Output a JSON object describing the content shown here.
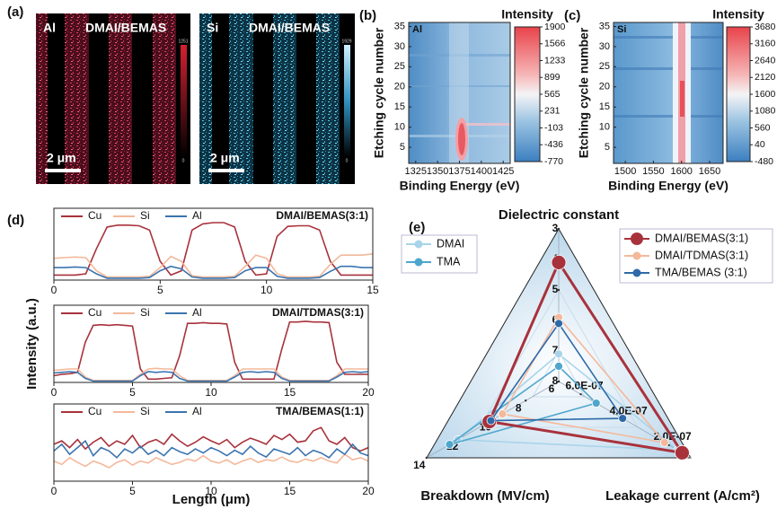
{
  "panel_labels": [
    "(a)",
    "(b)",
    "(c)",
    "(d)",
    "(e)"
  ],
  "panel_a": {
    "maps": [
      {
        "element": "Al",
        "sample": "DMAI/BEMAS",
        "scale": "2 μm",
        "cbar_max": 1251,
        "cbar_min": 0
      },
      {
        "element": "Si",
        "sample": "DMAI/BEMAS",
        "scale": "2 μm",
        "cbar_max": 1929,
        "cbar_min": 0
      }
    ]
  },
  "chart_data": [
    {
      "type": "heatmap",
      "annotation": "Al",
      "colorbar_label": "Intensity",
      "xlabel": "Binding Energy (eV)",
      "ylabel": "Etching cycle number",
      "xlim": [
        1317,
        1433
      ],
      "xticks": [
        1325,
        1350,
        1375,
        1400,
        1425
      ],
      "ylim": [
        1,
        36
      ],
      "yticks": [
        5,
        10,
        15,
        20,
        25,
        30,
        35
      ],
      "clim": [
        -770,
        1900
      ],
      "cticks": [
        1900,
        1566,
        1233,
        899,
        565,
        231,
        -103,
        -436,
        -770
      ]
    },
    {
      "type": "heatmap",
      "annotation": "Si",
      "colorbar_label": "Intensity",
      "xlabel": "Binding Energy (eV)",
      "ylabel": "Etching cycle number",
      "xlim": [
        1479,
        1674
      ],
      "xticks": [
        1500,
        1550,
        1600,
        1650
      ],
      "ylim": [
        1,
        36
      ],
      "yticks": [
        5,
        10,
        15,
        20,
        25,
        30,
        35
      ],
      "clim": [
        -480,
        3680
      ],
      "cticks": [
        3680,
        3160,
        2640,
        2120,
        1600,
        1080,
        560,
        40,
        -480
      ]
    },
    {
      "type": "line",
      "title": "DMAI/BEMAS(3:1)",
      "xlim": [
        0,
        15
      ],
      "xticks": [
        0,
        5,
        10,
        15
      ],
      "ylim": [
        0,
        1.15
      ],
      "x": [
        0,
        0.5,
        1,
        1.5,
        2,
        2.5,
        3,
        3.5,
        4,
        4.5,
        5,
        5.5,
        6,
        6.5,
        7,
        7.5,
        8,
        8.5,
        9,
        9.5,
        10,
        10.5,
        11,
        11.5,
        12,
        12.5,
        13,
        13.5,
        14,
        14.5,
        15
      ],
      "series": [
        {
          "name": "Cu",
          "color": "#a8323c",
          "values": [
            0.08,
            0.08,
            0.08,
            0.1,
            0.5,
            0.85,
            0.88,
            0.88,
            0.87,
            0.8,
            0.3,
            0.08,
            0.15,
            0.8,
            0.9,
            0.92,
            0.92,
            0.85,
            0.3,
            0.08,
            0.1,
            0.7,
            0.86,
            0.87,
            0.87,
            0.8,
            0.3,
            0.08,
            0.08,
            0.08,
            0.08
          ]
        },
        {
          "name": "Si",
          "color": "#f4b89a",
          "values": [
            0.35,
            0.36,
            0.37,
            0.36,
            0.15,
            0.05,
            0.05,
            0.05,
            0.05,
            0.06,
            0.2,
            0.38,
            0.3,
            0.07,
            0.05,
            0.05,
            0.05,
            0.06,
            0.22,
            0.4,
            0.35,
            0.1,
            0.05,
            0.05,
            0.05,
            0.06,
            0.25,
            0.4,
            0.4,
            0.4,
            0.42
          ]
        },
        {
          "name": "Al",
          "color": "#3b74b0",
          "values": [
            0.2,
            0.2,
            0.21,
            0.2,
            0.1,
            0.03,
            0.03,
            0.03,
            0.03,
            0.04,
            0.15,
            0.22,
            0.18,
            0.05,
            0.03,
            0.03,
            0.03,
            0.04,
            0.15,
            0.2,
            0.2,
            0.06,
            0.03,
            0.03,
            0.03,
            0.04,
            0.14,
            0.22,
            0.22,
            0.2,
            0.2
          ]
        }
      ]
    },
    {
      "type": "line",
      "title": "DMAI/TDMAS(3:1)",
      "ylabel": "Intensity (a.u.)",
      "xlim": [
        0,
        20
      ],
      "xticks": [
        0,
        5,
        10,
        15,
        20
      ],
      "ylim": [
        0,
        1.15
      ],
      "x": [
        0,
        0.5,
        1,
        1.5,
        2,
        2.5,
        3,
        3.5,
        4,
        4.5,
        5,
        5.5,
        6,
        6.5,
        7,
        7.5,
        8,
        8.5,
        9,
        9.5,
        10,
        10.5,
        11,
        11.5,
        12,
        12.5,
        13,
        13.5,
        14,
        14.5,
        15,
        15.5,
        16,
        16.5,
        17,
        17.5,
        18,
        18.5,
        19,
        19.5,
        20
      ],
      "series": [
        {
          "name": "Cu",
          "color": "#a8323c",
          "values": [
            0.1,
            0.12,
            0.13,
            0.15,
            0.6,
            0.85,
            0.86,
            0.85,
            0.86,
            0.85,
            0.84,
            0.2,
            0.05,
            0.05,
            0.06,
            0.07,
            0.4,
            0.88,
            0.88,
            0.89,
            0.88,
            0.88,
            0.87,
            0.3,
            0.05,
            0.05,
            0.05,
            0.05,
            0.05,
            0.5,
            0.9,
            0.9,
            0.91,
            0.9,
            0.9,
            0.89,
            0.3,
            0.12,
            0.12,
            0.12,
            0.12
          ]
        },
        {
          "name": "Si",
          "color": "#f4b89a",
          "values": [
            0.18,
            0.19,
            0.2,
            0.2,
            0.08,
            0.03,
            0.03,
            0.03,
            0.03,
            0.03,
            0.03,
            0.12,
            0.2,
            0.21,
            0.2,
            0.2,
            0.1,
            0.03,
            0.03,
            0.03,
            0.03,
            0.03,
            0.03,
            0.1,
            0.2,
            0.2,
            0.2,
            0.2,
            0.2,
            0.08,
            0.03,
            0.03,
            0.03,
            0.03,
            0.03,
            0.03,
            0.1,
            0.2,
            0.2,
            0.2,
            0.2
          ]
        },
        {
          "name": "Al",
          "color": "#3b74b0",
          "values": [
            0.14,
            0.15,
            0.16,
            0.15,
            0.06,
            0.02,
            0.02,
            0.02,
            0.02,
            0.02,
            0.02,
            0.1,
            0.16,
            0.15,
            0.16,
            0.15,
            0.06,
            0.02,
            0.02,
            0.02,
            0.02,
            0.02,
            0.02,
            0.08,
            0.15,
            0.16,
            0.15,
            0.16,
            0.15,
            0.06,
            0.02,
            0.02,
            0.02,
            0.02,
            0.02,
            0.02,
            0.08,
            0.15,
            0.16,
            0.15,
            0.16
          ]
        }
      ]
    },
    {
      "type": "line",
      "title": "TMA/BEMAS(1:1)",
      "xlabel": "Length (μm)",
      "xlim": [
        0,
        20
      ],
      "xticks": [
        0,
        5,
        10,
        15,
        20
      ],
      "ylim": [
        0,
        1.15
      ],
      "x": [
        0,
        0.5,
        1,
        1.5,
        2,
        2.5,
        3,
        3.5,
        4,
        4.5,
        5,
        5.5,
        6,
        6.5,
        7,
        7.5,
        8,
        8.5,
        9,
        9.5,
        10,
        10.5,
        11,
        11.5,
        12,
        12.5,
        13,
        13.5,
        14,
        14.5,
        15,
        15.5,
        16,
        16.5,
        17,
        17.5,
        18,
        18.5,
        19,
        19.5,
        20
      ],
      "series": [
        {
          "name": "Cu",
          "color": "#a8323c",
          "values": [
            0.55,
            0.6,
            0.5,
            0.62,
            0.48,
            0.58,
            0.65,
            0.52,
            0.6,
            0.55,
            0.68,
            0.5,
            0.58,
            0.62,
            0.55,
            0.7,
            0.6,
            0.52,
            0.58,
            0.66,
            0.6,
            0.55,
            0.62,
            0.5,
            0.58,
            0.64,
            0.6,
            0.55,
            0.68,
            0.62,
            0.7,
            0.58,
            0.6,
            0.75,
            0.8,
            0.6,
            0.55,
            0.65,
            0.5,
            0.45,
            0.5
          ]
        },
        {
          "name": "Si",
          "color": "#f4b89a",
          "values": [
            0.3,
            0.25,
            0.35,
            0.28,
            0.22,
            0.3,
            0.26,
            0.2,
            0.28,
            0.32,
            0.24,
            0.3,
            0.27,
            0.35,
            0.3,
            0.25,
            0.28,
            0.33,
            0.3,
            0.38,
            0.3,
            0.27,
            0.32,
            0.25,
            0.3,
            0.34,
            0.28,
            0.32,
            0.3,
            0.36,
            0.3,
            0.28,
            0.33,
            0.3,
            0.35,
            0.3,
            0.27,
            0.4,
            0.32,
            0.35,
            0.3
          ]
        },
        {
          "name": "Al",
          "color": "#3b74b0",
          "values": [
            0.45,
            0.55,
            0.4,
            0.5,
            0.6,
            0.38,
            0.5,
            0.45,
            0.35,
            0.48,
            0.42,
            0.52,
            0.4,
            0.46,
            0.38,
            0.5,
            0.44,
            0.4,
            0.48,
            0.42,
            0.5,
            0.45,
            0.38,
            0.46,
            0.4,
            0.52,
            0.42,
            0.36,
            0.48,
            0.44,
            0.4,
            0.5,
            0.38,
            0.46,
            0.42,
            0.35,
            0.48,
            0.4,
            0.55,
            0.42,
            0.38
          ]
        }
      ]
    },
    {
      "type": "radar",
      "axes": [
        {
          "name": "Dielectric constant",
          "lim": [
            8,
            3
          ],
          "ticks": [
            3,
            4,
            5,
            6,
            7,
            8
          ]
        },
        {
          "name": "Leakage current (A/cm²)",
          "lim": [
            7e-07,
            1e-07
          ],
          "ticks": [
            {
              "value": 2e-07,
              "label": "2.0E-07"
            },
            {
              "value": 4e-07,
              "label": "4.0E-07"
            },
            {
              "value": 6e-07,
              "label": "6.0E-07"
            }
          ]
        },
        {
          "name": "Breakdown (MV/cm)",
          "lim": [
            6,
            14
          ],
          "ticks": [
            6,
            8,
            10,
            12,
            14
          ]
        }
      ],
      "series": [
        {
          "name": "DMAI",
          "color": "#a8d4ea",
          "values": [
            7.1,
            1.6e-07,
            12.1
          ]
        },
        {
          "name": "TMA",
          "color": "#4ea6cc",
          "values": [
            7.5,
            5.3e-07,
            12.6
          ]
        },
        {
          "name": "DMAI/BEMAS(3:1)",
          "color": "#a8323c",
          "values": [
            4.1,
            1.4e-07,
            10.2
          ]
        },
        {
          "name": "DMAI/TDMAS(3:1)",
          "color": "#f4b89a",
          "values": [
            5.9,
            2.2e-07,
            9.4
          ]
        },
        {
          "name": "TMA/BEMAS (3:1)",
          "color": "#2e6aa8",
          "values": [
            6.1,
            4.1e-07,
            10.1
          ]
        }
      ]
    }
  ]
}
